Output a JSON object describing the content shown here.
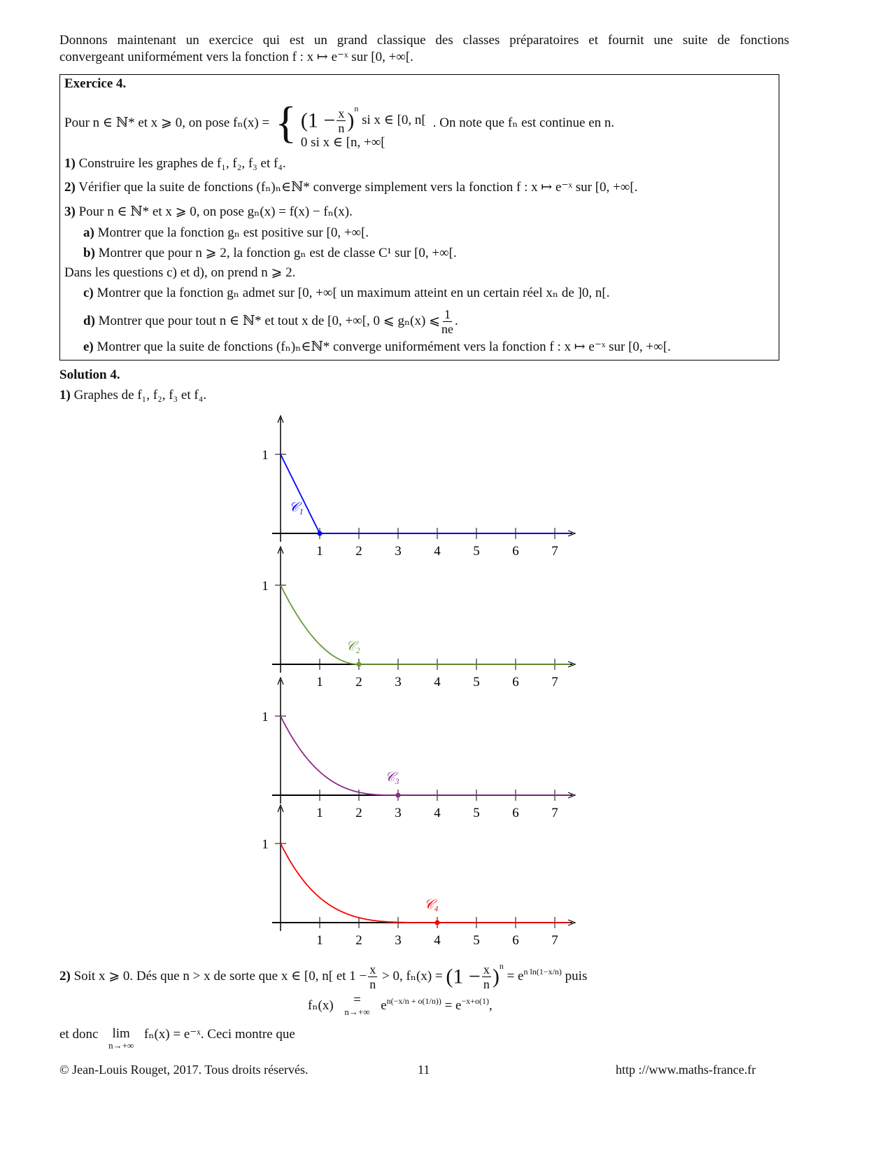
{
  "intro": {
    "line1": "Donnons maintenant un exercice qui est un grand classique des classes préparatoires et fournit une suite de fonctions",
    "line2": "convergeant uniformément vers la fonction f : x ↦ e⁻ˣ sur [0, +∞[."
  },
  "exercise": {
    "title": "Exercice 4.",
    "def_prefix": "Pour n ∈ ℕ* et x ⩾ 0, on pose fₙ(x) =",
    "case1_open": "(1 −",
    "case1_num": "x",
    "case1_den": "n",
    "case1_close": ")",
    "case1_exp": "n",
    "case1_cond": "si x ∈ [0, n[",
    "case2": "0 si x ∈ [n, +∞[",
    "def_suffix": ". On note que fₙ est continue en n.",
    "q1_num": "1)",
    "q1": "Construire les graphes de f₁, f₂, f₃ et f₄.",
    "q2_num": "2)",
    "q2": "Vérifier que la suite de fonctions (fₙ)ₙ∈ℕ* converge simplement vers la fonction f : x ↦ e⁻ˣ sur [0, +∞[.",
    "q3_num": "3)",
    "q3": "Pour n ∈ ℕ* et x ⩾ 0, on pose gₙ(x) = f(x) − fₙ(x).",
    "qa_num": "a)",
    "qa": "Montrer que la fonction gₙ est positive sur [0, +∞[.",
    "qb_num": "b)",
    "qb": "Montrer que pour n ⩾ 2, la fonction gₙ est de classe C¹ sur [0, +∞[.",
    "note": "Dans les questions c) et d), on prend n ⩾ 2.",
    "qc_num": "c)",
    "qc": "Montrer que la fonction gₙ admet sur [0, +∞[ un maximum atteint en un certain réel xₙ de ]0, n[.",
    "qd_num": "d)",
    "qd": "Montrer que pour tout n ∈ ℕ* et tout x de [0, +∞[, 0 ⩽ gₙ(x) ⩽",
    "qd_num_frac": "1",
    "qd_den_frac": "ne",
    "qd_end": ".",
    "qe_num": "e)",
    "qe": "Montrer que la suite de fonctions (fₙ)ₙ∈ℕ* converge uniformément vers la fonction f : x ↦ e⁻ˣ sur [0, +∞[."
  },
  "solution": {
    "title": "Solution 4.",
    "s1_num": "1)",
    "s1": "Graphes de f₁, f₂, f₃ et f₄.",
    "s2_num": "2)",
    "s2_a": "Soit x ⩾ 0. Dés que n > x de sorte que x ∈ [0, n[ et 1 −",
    "s2_frac_num": "x",
    "s2_frac_den": "n",
    "s2_b": "> 0, fₙ(x) =",
    "s2_c": "(1 −",
    "s2_d": ")",
    "s2_exp": "n",
    "s2_e": "= e",
    "s2_e_exp": "n ln(1−x/n)",
    "s2_f": "puis",
    "eq_lhs": "fₙ(x)",
    "eq_eq": "=",
    "eq_under": "n→+∞",
    "eq_rhs": "e",
    "eq_rhs_exp": "n(−x/n + o(1/n))",
    "eq_rhs2": "= e",
    "eq_rhs2_exp": "−x+o(1)",
    "eq_end": ",",
    "s3_a": "et donc",
    "s3_lim": "lim",
    "s3_under": "n→+∞",
    "s3_b": "fₙ(x) = e⁻ˣ. Ceci montre que"
  },
  "footer": {
    "copyright": "© Jean-Louis Rouget, 2017. Tous droits réservés.",
    "page": "11",
    "url": "http ://www.maths-france.fr"
  },
  "chart_data": [
    {
      "type": "line",
      "n": 1,
      "label": "𝒞₁",
      "color": "#0000ff",
      "x_ticks": [
        "1",
        "2",
        "3",
        "4",
        "5",
        "6",
        "7"
      ],
      "y_ticks": [
        "1"
      ],
      "xlim": [
        0,
        7.5
      ],
      "ylim": [
        0,
        1
      ],
      "x": [
        0,
        1,
        2,
        3,
        4,
        5,
        6,
        7
      ],
      "values": [
        1,
        0,
        0,
        0,
        0,
        0,
        0,
        0
      ],
      "marked_point": [
        1,
        0
      ]
    },
    {
      "type": "line",
      "n": 2,
      "label": "𝒞₂",
      "color": "#6a9a3a",
      "x_ticks": [
        "1",
        "2",
        "3",
        "4",
        "5",
        "6",
        "7"
      ],
      "y_ticks": [
        "1"
      ],
      "xlim": [
        0,
        7.5
      ],
      "ylim": [
        0,
        1
      ],
      "x": [
        0,
        1,
        2,
        3,
        4,
        5,
        6,
        7
      ],
      "values": [
        1,
        0.25,
        0,
        0,
        0,
        0,
        0,
        0
      ],
      "marked_point": [
        2,
        0
      ]
    },
    {
      "type": "line",
      "n": 3,
      "label": "𝒞₃",
      "color": "#8b2a8b",
      "x_ticks": [
        "1",
        "2",
        "3",
        "4",
        "5",
        "6",
        "7"
      ],
      "y_ticks": [
        "1"
      ],
      "xlim": [
        0,
        7.5
      ],
      "ylim": [
        0,
        1
      ],
      "x": [
        0,
        1,
        2,
        3,
        4,
        5,
        6,
        7
      ],
      "values": [
        1,
        0.296,
        0.037,
        0,
        0,
        0,
        0,
        0
      ],
      "marked_point": [
        3,
        0
      ]
    },
    {
      "type": "line",
      "n": 4,
      "label": "𝒞₄",
      "color": "#ff0000",
      "x_ticks": [
        "1",
        "2",
        "3",
        "4",
        "5",
        "6",
        "7"
      ],
      "y_ticks": [
        "1"
      ],
      "xlim": [
        0,
        7.5
      ],
      "ylim": [
        0,
        1
      ],
      "x": [
        0,
        1,
        2,
        3,
        4,
        5,
        6,
        7
      ],
      "values": [
        1,
        0.316,
        0.0625,
        0.0039,
        0,
        0,
        0,
        0
      ],
      "marked_point": [
        4,
        0
      ]
    }
  ]
}
